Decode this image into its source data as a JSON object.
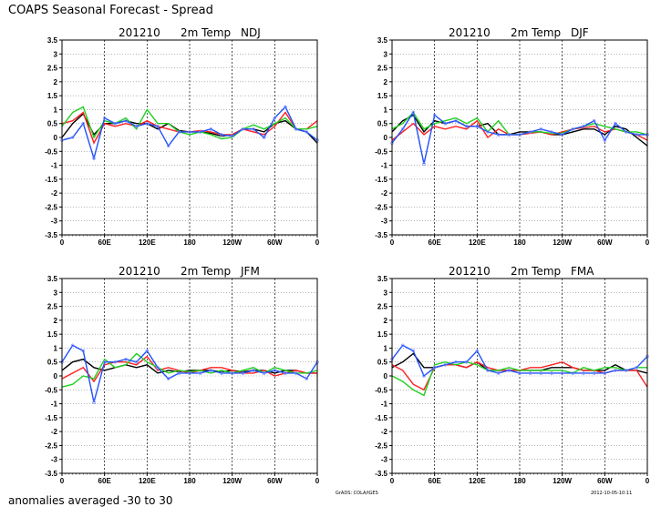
{
  "title": "COAPS Seasonal Forecast - Spread",
  "footer": "anomalies averaged -30 to 30",
  "credit": "GrADS: COLA/IGES",
  "timestamp": "2012-10-05-10:11",
  "colors": {
    "black": "#000000",
    "red": "#ff2020",
    "green": "#20d020",
    "blue": "#2050ff"
  },
  "chart_data": [
    {
      "type": "line",
      "title_parts": [
        "201210",
        "2m Temp",
        "NDJ"
      ],
      "ylim": [
        -3.5,
        3.5
      ],
      "yticks": [
        "3.5",
        "3",
        "2.5",
        "2",
        "1.5",
        "1",
        "0.5",
        "0",
        "-0.5",
        "-1",
        "-1.5",
        "-2",
        "-2.5",
        "-3",
        "-3.5"
      ],
      "xlim": [
        0,
        360
      ],
      "xtick_labels": [
        "0",
        "60E",
        "120E",
        "180",
        "120W",
        "60W",
        "0"
      ],
      "grid": true,
      "x": [
        0,
        15,
        30,
        45,
        60,
        75,
        90,
        105,
        120,
        135,
        150,
        165,
        180,
        195,
        210,
        225,
        240,
        255,
        270,
        285,
        300,
        315,
        330,
        345,
        360
      ],
      "series": [
        {
          "name": "black",
          "color": "#000000",
          "values": [
            0.0,
            0.5,
            0.85,
            0.1,
            0.5,
            0.5,
            0.6,
            0.5,
            0.5,
            0.3,
            0.5,
            0.25,
            0.2,
            0.2,
            0.15,
            0.05,
            0.1,
            0.3,
            0.3,
            0.2,
            0.5,
            0.6,
            0.3,
            0.2,
            -0.2
          ]
        },
        {
          "name": "red",
          "color": "#ff2020",
          "values": [
            0.5,
            0.6,
            0.9,
            -0.2,
            0.5,
            0.4,
            0.5,
            0.4,
            0.6,
            0.4,
            0.3,
            0.2,
            0.2,
            0.25,
            0.2,
            0.1,
            0.1,
            0.3,
            0.2,
            0.1,
            0.4,
            0.9,
            0.3,
            0.3,
            0.6
          ]
        },
        {
          "name": "green",
          "color": "#20d020",
          "values": [
            0.4,
            0.9,
            1.1,
            0.0,
            0.6,
            0.5,
            0.7,
            0.3,
            1.0,
            0.5,
            0.5,
            0.2,
            0.1,
            0.2,
            0.1,
            -0.05,
            0.0,
            0.3,
            0.45,
            0.3,
            0.5,
            0.7,
            0.3,
            0.3,
            0.4
          ]
        },
        {
          "name": "blue",
          "color": "#2050ff",
          "values": [
            -0.1,
            0.0,
            0.5,
            -0.75,
            0.7,
            0.5,
            0.6,
            0.4,
            0.5,
            0.4,
            -0.3,
            0.2,
            0.2,
            0.2,
            0.3,
            0.1,
            0.05,
            0.3,
            0.3,
            0.0,
            0.7,
            1.1,
            0.3,
            0.2,
            -0.1
          ]
        }
      ]
    },
    {
      "type": "line",
      "title_parts": [
        "201210",
        "2m Temp",
        "DJF"
      ],
      "ylim": [
        -3.5,
        3.5
      ],
      "yticks": [
        "3.5",
        "3",
        "2.5",
        "2",
        "1.5",
        "1",
        "0.5",
        "0",
        "-0.5",
        "-1",
        "-1.5",
        "-2",
        "-2.5",
        "-3",
        "-3.5"
      ],
      "xlim": [
        0,
        360
      ],
      "xtick_labels": [
        "0",
        "60E",
        "120E",
        "180",
        "120W",
        "60W",
        "0"
      ],
      "grid": true,
      "x": [
        0,
        15,
        30,
        45,
        60,
        75,
        90,
        105,
        120,
        135,
        150,
        165,
        180,
        195,
        210,
        225,
        240,
        255,
        270,
        285,
        300,
        315,
        330,
        345,
        360
      ],
      "series": [
        {
          "name": "black",
          "color": "#000000",
          "values": [
            0.2,
            0.6,
            0.8,
            0.2,
            0.6,
            0.5,
            0.6,
            0.4,
            0.4,
            0.5,
            0.1,
            0.1,
            0.2,
            0.2,
            0.2,
            0.1,
            0.1,
            0.2,
            0.3,
            0.3,
            0.1,
            0.4,
            0.3,
            0.0,
            -0.3
          ]
        },
        {
          "name": "red",
          "color": "#ff2020",
          "values": [
            -0.1,
            0.2,
            0.5,
            0.1,
            0.4,
            0.3,
            0.4,
            0.3,
            0.6,
            0.0,
            0.3,
            0.1,
            0.1,
            0.15,
            0.2,
            0.1,
            0.2,
            0.3,
            0.35,
            0.4,
            0.2,
            0.3,
            0.2,
            0.1,
            -0.1
          ]
        },
        {
          "name": "green",
          "color": "#20d020",
          "values": [
            0.3,
            0.5,
            0.9,
            0.3,
            0.5,
            0.6,
            0.7,
            0.5,
            0.7,
            0.2,
            0.6,
            0.1,
            0.1,
            0.2,
            0.2,
            0.15,
            0.15,
            0.3,
            0.4,
            0.5,
            0.4,
            0.3,
            0.2,
            0.2,
            0.1
          ]
        },
        {
          "name": "blue",
          "color": "#2050ff",
          "values": [
            -0.2,
            0.3,
            0.9,
            -0.95,
            0.8,
            0.5,
            0.6,
            0.4,
            0.4,
            0.2,
            0.1,
            0.1,
            0.1,
            0.2,
            0.3,
            0.2,
            0.1,
            0.3,
            0.4,
            0.6,
            -0.1,
            0.5,
            0.2,
            0.1,
            0.1
          ]
        }
      ]
    },
    {
      "type": "line",
      "title_parts": [
        "201210",
        "2m Temp",
        "JFM"
      ],
      "ylim": [
        -3.5,
        3.5
      ],
      "yticks": [
        "3.5",
        "3",
        "2.5",
        "2",
        "1.5",
        "1",
        "0.5",
        "0",
        "-0.5",
        "-1",
        "-1.5",
        "-2",
        "-2.5",
        "-3",
        "-3.5"
      ],
      "xlim": [
        0,
        360
      ],
      "xtick_labels": [
        "0",
        "60E",
        "120E",
        "180",
        "120W",
        "60W",
        "0"
      ],
      "grid": true,
      "x": [
        0,
        15,
        30,
        45,
        60,
        75,
        90,
        105,
        120,
        135,
        150,
        165,
        180,
        195,
        210,
        225,
        240,
        255,
        270,
        285,
        300,
        315,
        330,
        345,
        360
      ],
      "series": [
        {
          "name": "black",
          "color": "#000000",
          "values": [
            0.2,
            0.5,
            0.6,
            0.3,
            0.2,
            0.3,
            0.4,
            0.3,
            0.4,
            0.1,
            0.2,
            0.15,
            0.2,
            0.2,
            0.2,
            0.15,
            0.2,
            0.15,
            0.2,
            0.2,
            0.1,
            0.2,
            0.2,
            0.1,
            0.1
          ]
        },
        {
          "name": "red",
          "color": "#ff2020",
          "values": [
            -0.1,
            0.1,
            0.3,
            -0.2,
            0.4,
            0.5,
            0.5,
            0.4,
            0.7,
            0.2,
            0.3,
            0.2,
            0.1,
            0.2,
            0.3,
            0.3,
            0.2,
            0.1,
            0.1,
            0.2,
            0.0,
            0.1,
            0.2,
            0.1,
            0.1
          ]
        },
        {
          "name": "green",
          "color": "#20d020",
          "values": [
            -0.4,
            -0.3,
            0.0,
            -0.1,
            0.6,
            0.3,
            0.4,
            0.8,
            0.5,
            0.3,
            0.1,
            0.2,
            0.15,
            0.2,
            0.1,
            0.2,
            0.1,
            0.2,
            0.3,
            0.1,
            0.3,
            0.2,
            0.1,
            0.1,
            0.2
          ]
        },
        {
          "name": "blue",
          "color": "#2050ff",
          "values": [
            0.5,
            1.1,
            0.9,
            -0.95,
            0.5,
            0.5,
            0.6,
            0.5,
            0.9,
            0.3,
            -0.1,
            0.1,
            0.1,
            0.1,
            0.2,
            0.1,
            0.1,
            0.1,
            0.2,
            0.1,
            0.2,
            0.1,
            0.1,
            -0.1,
            0.5
          ]
        }
      ]
    },
    {
      "type": "line",
      "title_parts": [
        "201210",
        "2m Temp",
        "FMA"
      ],
      "ylim": [
        -3.5,
        3.5
      ],
      "yticks": [
        "3.5",
        "3",
        "2.5",
        "2",
        "1.5",
        "1",
        "0.5",
        "0",
        "-0.5",
        "-1",
        "-1.5",
        "-2",
        "-2.5",
        "-3",
        "-3.5"
      ],
      "xlim": [
        0,
        360
      ],
      "xtick_labels": [
        "0",
        "60E",
        "120E",
        "180",
        "120W",
        "60W",
        "0"
      ],
      "grid": true,
      "x": [
        0,
        15,
        30,
        45,
        60,
        75,
        90,
        105,
        120,
        135,
        150,
        165,
        180,
        195,
        210,
        225,
        240,
        255,
        270,
        285,
        300,
        315,
        330,
        345,
        360
      ],
      "series": [
        {
          "name": "black",
          "color": "#000000",
          "values": [
            0.3,
            0.5,
            0.8,
            0.3,
            0.3,
            0.4,
            0.4,
            0.3,
            0.5,
            0.2,
            0.2,
            0.2,
            0.2,
            0.2,
            0.2,
            0.3,
            0.3,
            0.3,
            0.2,
            0.2,
            0.2,
            0.4,
            0.2,
            0.2,
            0.1
          ]
        },
        {
          "name": "red",
          "color": "#ff2020",
          "values": [
            0.4,
            0.2,
            -0.3,
            -0.5,
            0.3,
            0.4,
            0.4,
            0.3,
            0.5,
            0.3,
            0.2,
            0.2,
            0.2,
            0.3,
            0.3,
            0.4,
            0.5,
            0.3,
            0.2,
            0.2,
            0.1,
            0.2,
            0.2,
            0.2,
            -0.4
          ]
        },
        {
          "name": "green",
          "color": "#20d020",
          "values": [
            0.0,
            -0.2,
            -0.5,
            -0.7,
            0.4,
            0.5,
            0.4,
            0.5,
            0.4,
            0.2,
            0.2,
            0.3,
            0.2,
            0.2,
            0.2,
            0.2,
            0.2,
            0.1,
            0.3,
            0.2,
            0.3,
            0.3,
            0.2,
            0.3,
            0.3
          ]
        },
        {
          "name": "blue",
          "color": "#2050ff",
          "values": [
            0.6,
            1.1,
            0.9,
            0.0,
            0.3,
            0.4,
            0.5,
            0.5,
            0.9,
            0.2,
            0.1,
            0.2,
            0.1,
            0.1,
            0.1,
            0.1,
            0.1,
            0.1,
            0.1,
            0.1,
            0.1,
            0.2,
            0.2,
            0.3,
            0.7
          ]
        }
      ]
    }
  ]
}
